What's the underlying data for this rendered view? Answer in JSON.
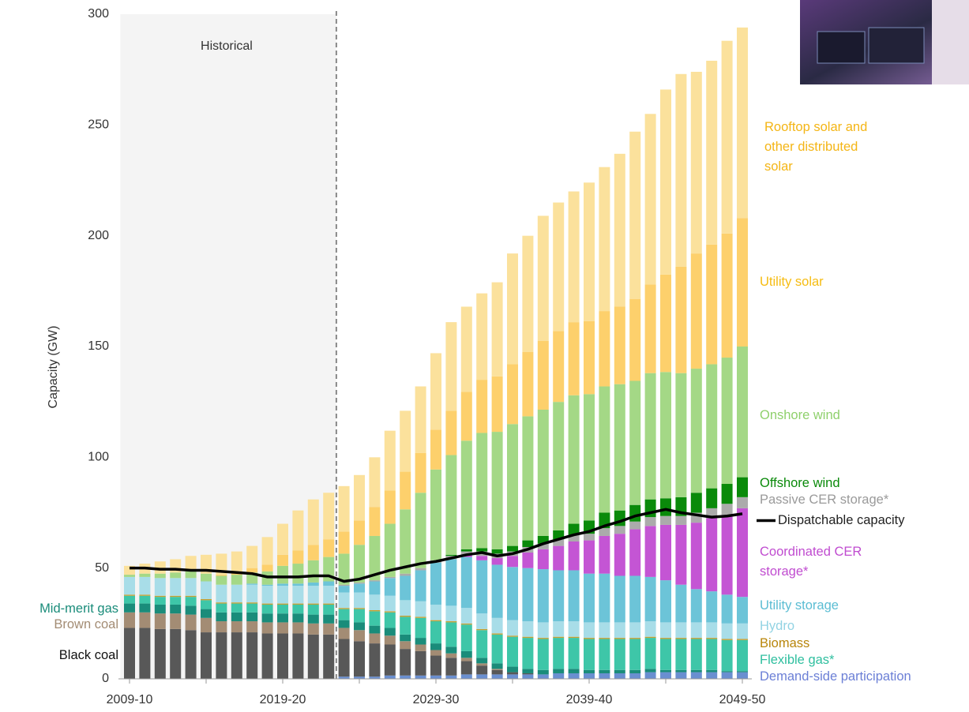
{
  "chart_data": {
    "type": "bar",
    "stacked": true,
    "y_label": "Capacity (GW)",
    "annotation": "Historical",
    "historical_until_index": 13,
    "ylim": [
      0,
      300
    ],
    "yticks": [
      0,
      50,
      100,
      150,
      200,
      250,
      300
    ],
    "grid": false,
    "categories": [
      "2009-10",
      null,
      null,
      null,
      null,
      null,
      null,
      null,
      null,
      null,
      "2019-20",
      null,
      null,
      null,
      null,
      null,
      null,
      null,
      null,
      null,
      "2029-30",
      null,
      null,
      null,
      null,
      null,
      null,
      null,
      null,
      null,
      "2039-40",
      null,
      null,
      null,
      null,
      null,
      null,
      null,
      null,
      null,
      "2049-50"
    ],
    "series": [
      {
        "name": "Demand-side participation",
        "color": "#6a8fd0",
        "label_color": "#6b7fd6",
        "values": [
          0,
          0,
          0,
          0,
          0,
          0,
          0,
          0,
          0,
          0,
          0,
          0,
          0,
          0,
          1,
          1,
          1,
          1.5,
          1.5,
          1.5,
          1.5,
          1.5,
          2,
          2,
          2,
          2,
          2,
          2,
          2.5,
          2.5,
          2.5,
          2.5,
          2.5,
          2.5,
          3,
          3,
          3,
          3,
          3,
          3,
          3
        ]
      },
      {
        "name": "Black coal",
        "color": "#585858",
        "label_color": "#111111",
        "values": [
          23,
          23,
          22.5,
          22.5,
          22,
          21,
          21,
          21,
          21,
          20.5,
          20.5,
          20.5,
          20,
          20,
          17,
          16,
          15,
          14,
          12,
          11,
          9,
          8,
          6,
          4,
          2,
          1,
          0.5,
          0,
          0,
          0,
          0,
          0,
          0,
          0,
          0,
          0,
          0,
          0,
          0,
          0,
          0
        ]
      },
      {
        "name": "Brown coal",
        "color": "#a38c74",
        "label_color": "#a38c74",
        "values": [
          7,
          7,
          7,
          7,
          7,
          6.5,
          5,
          5,
          5,
          5,
          5,
          5,
          5,
          5,
          5,
          5,
          4.5,
          4,
          3.5,
          3,
          2.5,
          2,
          1.5,
          1,
          0.5,
          0,
          0,
          0,
          0,
          0,
          0,
          0,
          0,
          0,
          0,
          0,
          0,
          0,
          0,
          0,
          0
        ]
      },
      {
        "name": "Mid-merit gas",
        "color": "#1a8c7a",
        "label_color": "#1a8c7a",
        "values": [
          4,
          4,
          4,
          4,
          4,
          4,
          4,
          4,
          4,
          4,
          4,
          4,
          4,
          4,
          3.5,
          3.5,
          3.5,
          3.5,
          3,
          3,
          3,
          3,
          3,
          2.5,
          2.5,
          2.5,
          2,
          2,
          2,
          2,
          1.5,
          1.5,
          1.5,
          1.5,
          1.5,
          1,
          1,
          1,
          1,
          0.5,
          0.5
        ]
      },
      {
        "name": "Flexible gas*",
        "color": "#3ec6a8",
        "label_color": "#2fbf9f",
        "values": [
          3.5,
          3.5,
          3.5,
          3.5,
          4,
          4,
          4,
          4,
          4,
          4,
          4,
          4,
          4.5,
          4.5,
          5,
          6,
          6.5,
          7,
          8,
          9,
          10,
          11,
          12,
          12.5,
          13,
          13.5,
          14,
          14,
          14,
          14,
          14,
          14,
          14,
          14,
          14,
          14,
          14,
          14,
          14,
          14,
          14
        ]
      },
      {
        "name": "Biomass",
        "color": "#c8a030",
        "label_color": "#b8860b",
        "values": [
          0.5,
          0.5,
          0.5,
          0.5,
          0.5,
          0.5,
          0.5,
          0.5,
          0.5,
          0.5,
          0.5,
          0.5,
          0.5,
          0.5,
          0.5,
          0.5,
          0.5,
          0.5,
          0.5,
          0.5,
          0.5,
          0.5,
          0.5,
          0.5,
          0.5,
          0.5,
          0.5,
          0.5,
          0.5,
          0.5,
          0.5,
          0.5,
          0.5,
          0.5,
          0.5,
          0.5,
          0.5,
          0.5,
          0.5,
          0.5,
          0.5
        ]
      },
      {
        "name": "Hydro",
        "color": "#a8dde8",
        "label_color": "#92d3e3",
        "values": [
          8,
          8,
          8,
          8,
          8,
          8,
          8,
          8,
          8,
          8,
          8,
          8,
          8,
          8,
          7,
          7,
          7,
          7,
          7,
          7,
          7,
          7,
          7,
          7,
          7,
          7,
          7,
          7,
          7,
          7,
          7,
          7,
          7,
          7,
          7,
          7,
          7,
          7,
          7,
          7,
          7
        ]
      },
      {
        "name": "Utility storage",
        "color": "#6cc4d8",
        "label_color": "#5bbdd3",
        "values": [
          0,
          0,
          0,
          0,
          0,
          0,
          0,
          0,
          0.5,
          0.5,
          1,
          1,
          1.5,
          2,
          3,
          4,
          6,
          8,
          11,
          14,
          19,
          21,
          23,
          24,
          24,
          24,
          24,
          24,
          23,
          23,
          22,
          22,
          21,
          21,
          20,
          19,
          17,
          15,
          14,
          13,
          12
        ]
      },
      {
        "name": "Coordinated CER storage*",
        "color": "#c455d4",
        "label_color": "#c04cd0",
        "values": [
          0,
          0,
          0,
          0,
          0,
          0,
          0,
          0,
          0,
          0,
          0,
          0,
          0,
          0,
          0,
          0,
          0,
          0,
          0,
          0,
          0,
          0,
          1,
          2,
          3,
          5,
          7,
          9,
          11,
          13,
          15,
          17,
          19,
          21,
          23,
          25,
          27,
          30,
          33,
          36,
          40
        ]
      },
      {
        "name": "Passive CER storage*",
        "color": "#ababab",
        "label_color": "#9a9a9a",
        "values": [
          0,
          0,
          0,
          0,
          0,
          0,
          0,
          0,
          0,
          0,
          0,
          0,
          0,
          0,
          0.5,
          0.5,
          0.5,
          0.5,
          1,
          1,
          1,
          1.5,
          1.5,
          2,
          2,
          2,
          2.5,
          2.5,
          3,
          3,
          3,
          3.5,
          3.5,
          3.5,
          4,
          4,
          4,
          4.5,
          4.5,
          5,
          5
        ]
      },
      {
        "name": "Offshore wind",
        "color": "#0a8a0a",
        "label_color": "#0a8a0a",
        "values": [
          0,
          0,
          0,
          0,
          0,
          0,
          0,
          0,
          0,
          0,
          0,
          0,
          0,
          0,
          0,
          0,
          0,
          0,
          0,
          0,
          0,
          0.5,
          1,
          1.5,
          2,
          2.5,
          3,
          3.5,
          4,
          5,
          6,
          7,
          7,
          7.5,
          8,
          8,
          8.5,
          9,
          9,
          9,
          9
        ]
      },
      {
        "name": "Onshore wind",
        "color": "#a4d886",
        "label_color": "#8fd06c",
        "values": [
          1,
          1.5,
          2,
          2.5,
          3,
          3.5,
          4,
          4.5,
          5,
          6,
          8,
          9,
          10,
          11,
          14,
          17,
          20,
          24,
          29,
          34,
          41,
          45,
          49,
          52,
          53,
          55,
          56,
          57,
          58,
          58,
          57,
          57,
          57,
          56,
          57,
          57,
          56,
          56,
          56,
          57,
          59
        ]
      },
      {
        "name": "Utility solar",
        "color": "#fdd06c",
        "label_color": "#f6bc12",
        "values": [
          0,
          0,
          0,
          0,
          0,
          0,
          0.5,
          1,
          2,
          3,
          5,
          6,
          7,
          8,
          10,
          11,
          13,
          15,
          17,
          18,
          18,
          20,
          22,
          24,
          25,
          27,
          29,
          31,
          32,
          33,
          33,
          34,
          35,
          37,
          40,
          44,
          48,
          52,
          54,
          56,
          58
        ]
      },
      {
        "name": "Rooftop solar and other distributed solar",
        "color": "#fbe19c",
        "label_color": "#f4b515",
        "values": [
          4,
          4.5,
          5.5,
          6,
          7,
          8.5,
          9.5,
          9.5,
          10,
          12.5,
          14,
          18,
          20.5,
          21,
          20.5,
          20.5,
          22.5,
          27,
          27.5,
          30,
          34.5,
          40,
          38.5,
          39,
          42.5,
          50,
          52.5,
          56.5,
          58,
          59,
          62.5,
          65,
          69,
          75.5,
          77,
          83.5,
          87,
          82,
          83,
          87,
          86
        ]
      },
      {
        "name": "Dispatchable capacity",
        "type": "line",
        "color": "#000000",
        "label_color": "#222222",
        "values": [
          50,
          50,
          49.5,
          49.5,
          49,
          49,
          48.5,
          48,
          47.5,
          46,
          46,
          46,
          46.5,
          46.5,
          44,
          45,
          47,
          49,
          50.5,
          52,
          53,
          54.5,
          56,
          57,
          55.5,
          56.5,
          58.5,
          61,
          63,
          65,
          66.5,
          69,
          71,
          73.5,
          75,
          76.5,
          75,
          74,
          73,
          73.5,
          74.5
        ]
      }
    ]
  }
}
